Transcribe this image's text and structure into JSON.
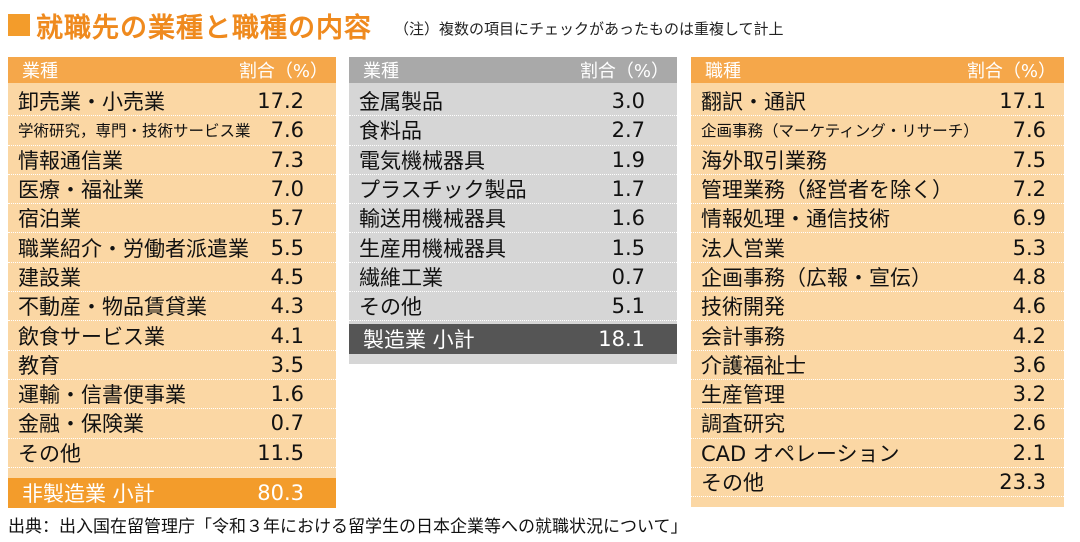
{
  "header": {
    "title": "就職先の業種と職種の内容",
    "note": "（注）複数の項目にチェックがあったものは重複して計上"
  },
  "chart_data": [
    {
      "type": "table",
      "columns": [
        "業種",
        "割合（%）"
      ],
      "rows": [
        {
          "label": "卸売業・小売業",
          "value": "17.2"
        },
        {
          "label": "学術研究，専門・技術サービス業",
          "value": "7.6"
        },
        {
          "label": "情報通信業",
          "value": "7.3"
        },
        {
          "label": "医療・福祉業",
          "value": "7.0"
        },
        {
          "label": "宿泊業",
          "value": "5.7"
        },
        {
          "label": "職業紹介・労働者派遣業",
          "value": "5.5"
        },
        {
          "label": "建設業",
          "value": "4.5"
        },
        {
          "label": "不動産・物品賃貸業",
          "value": "4.3"
        },
        {
          "label": "飲食サービス業",
          "value": "4.1"
        },
        {
          "label": "教育",
          "value": "3.5"
        },
        {
          "label": "運輸・信書便事業",
          "value": "1.6"
        },
        {
          "label": "金融・保険業",
          "value": "0.7"
        },
        {
          "label": "その他",
          "value": "11.5"
        }
      ],
      "subtotal": {
        "label": "非製造業 小計",
        "value": "80.3"
      }
    },
    {
      "type": "table",
      "columns": [
        "業種",
        "割合（%）"
      ],
      "rows": [
        {
          "label": "金属製品",
          "value": "3.0"
        },
        {
          "label": "食料品",
          "value": "2.7"
        },
        {
          "label": "電気機械器具",
          "value": "1.9"
        },
        {
          "label": "プラスチック製品",
          "value": "1.7"
        },
        {
          "label": "輸送用機械器具",
          "value": "1.6"
        },
        {
          "label": "生産用機械器具",
          "value": "1.5"
        },
        {
          "label": "繊維工業",
          "value": "0.7"
        },
        {
          "label": "その他",
          "value": "5.1"
        }
      ],
      "subtotal": {
        "label": "製造業 小計",
        "value": "18.1"
      }
    },
    {
      "type": "table",
      "columns": [
        "職種",
        "割合（%）"
      ],
      "rows": [
        {
          "label": "翻訳・通訳",
          "value": "17.1"
        },
        {
          "label": "企画事務（マーケティング・リサーチ）",
          "value": "7.6"
        },
        {
          "label": "海外取引業務",
          "value": "7.5"
        },
        {
          "label": "管理業務（経営者を除く）",
          "value": "7.2"
        },
        {
          "label": "情報処理・通信技術",
          "value": "6.9"
        },
        {
          "label": "法人営業",
          "value": "5.3"
        },
        {
          "label": "企画事務（広報・宣伝）",
          "value": "4.8"
        },
        {
          "label": "技術開発",
          "value": "4.6"
        },
        {
          "label": "会計事務",
          "value": "4.2"
        },
        {
          "label": "介護福祉士",
          "value": "3.6"
        },
        {
          "label": "生産管理",
          "value": "3.2"
        },
        {
          "label": "調査研究",
          "value": "2.6"
        },
        {
          "label": "CAD オペレーション",
          "value": "2.1"
        },
        {
          "label": "その他",
          "value": "23.3"
        }
      ]
    }
  ],
  "footer": {
    "source": "出典：出入国在留管理庁「令和３年における留学生の日本企業等への就職状況について」"
  },
  "colors": {
    "orange_dark": "#f39c2b",
    "orange_header": "#f5a74a",
    "orange_light": "#fbd7a4",
    "gray_header": "#a9a9a9",
    "gray_light": "#d6d6d6",
    "gray_subtotal": "#555555"
  }
}
